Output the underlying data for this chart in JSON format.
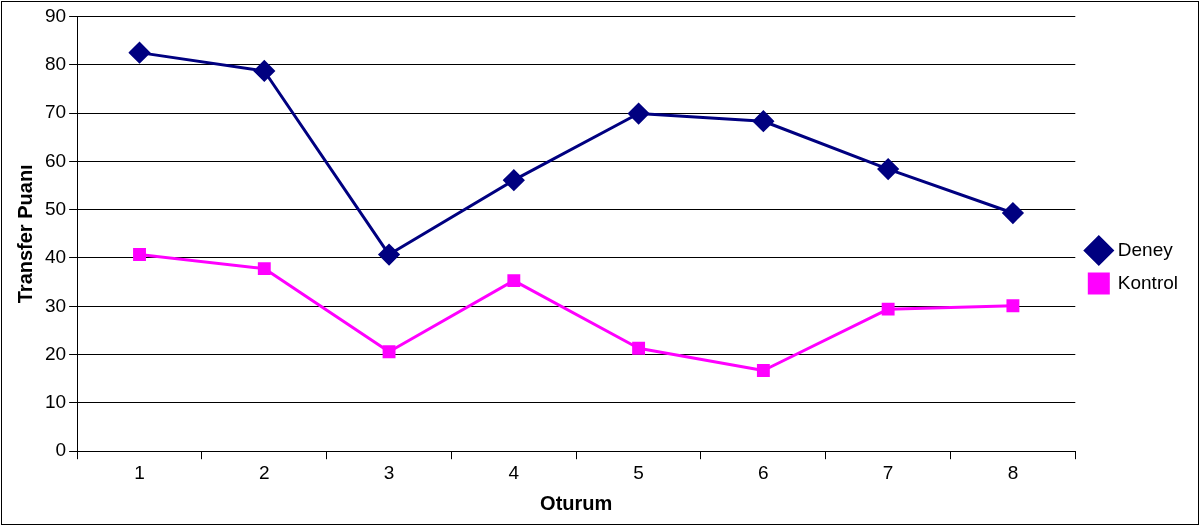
{
  "chart_data": {
    "type": "line",
    "xlabel": "Oturum",
    "ylabel": "Transfer Puanı",
    "categories": [
      "1",
      "2",
      "3",
      "4",
      "5",
      "6",
      "7",
      "8"
    ],
    "series": [
      {
        "name": "Deney",
        "color": "#000080",
        "marker": "diamond",
        "values": [
          82.5,
          78.7,
          40.7,
          56.1,
          69.9,
          68.3,
          58.4,
          49.3
        ]
      },
      {
        "name": "Kontrol",
        "color": "#ff00ff",
        "marker": "square",
        "values": [
          40.7,
          37.8,
          20.6,
          35.3,
          21.3,
          16.7,
          29.4,
          30.1
        ]
      }
    ],
    "ylim": [
      0,
      90
    ],
    "yticks": [
      0,
      10,
      20,
      30,
      40,
      50,
      60,
      70,
      80,
      90
    ],
    "grid": "y",
    "legend": "right",
    "line_style": "solid"
  }
}
